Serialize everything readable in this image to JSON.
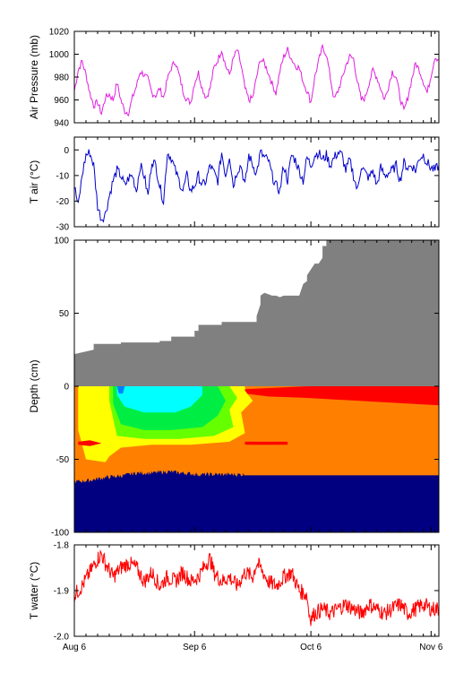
{
  "chart_data": [
    {
      "type": "line",
      "ylabel": "Air Pressure (mb)",
      "ylim": [
        940,
        1020
      ],
      "yticks": [
        "940",
        "960",
        "980",
        "1000",
        "1020"
      ],
      "xlim": [
        0,
        94
      ],
      "color": "#e020e0",
      "series": [
        {
          "x": [
            0,
            1,
            2,
            3,
            4,
            5,
            6,
            7,
            8,
            9,
            10,
            11,
            12,
            13,
            14,
            15,
            16,
            17,
            18,
            19,
            20,
            21,
            22,
            23,
            24,
            25,
            26,
            27,
            28,
            29,
            30,
            31,
            32,
            33,
            34,
            35,
            36,
            37,
            38,
            39,
            40,
            41,
            42,
            43,
            44,
            45,
            46,
            47,
            48,
            49,
            50,
            51,
            52,
            53,
            54,
            55,
            56,
            57,
            58,
            59,
            60,
            61,
            62,
            63,
            64,
            65,
            66,
            67,
            68,
            69,
            70,
            71,
            72,
            73,
            74,
            75,
            76,
            77,
            78,
            79,
            80,
            81,
            82,
            83,
            84,
            85,
            86,
            87,
            88,
            89,
            90,
            91,
            92,
            93,
            94
          ],
          "values": [
            968,
            986,
            994,
            982,
            966,
            955,
            958,
            948,
            962,
            965,
            960,
            975,
            960,
            950,
            949,
            962,
            972,
            985,
            982,
            978,
            966,
            964,
            970,
            962,
            978,
            988,
            994,
            982,
            968,
            960,
            958,
            975,
            984,
            970,
            962,
            970,
            988,
            995,
            1004,
            990,
            982,
            996,
            1004,
            990,
            970,
            960,
            962,
            980,
            996,
            992,
            984,
            974,
            966,
            985,
            998,
            1004,
            996,
            990,
            988,
            976,
            968,
            958,
            980,
            994,
            1006,
            1000,
            980,
            960,
            968,
            978,
            990,
            998,
            996,
            976,
            960,
            962,
            975,
            986,
            980,
            970,
            960,
            972,
            985,
            980,
            962,
            950,
            962,
            978,
            992,
            986,
            976,
            966,
            982,
            998,
            995
          ]
        }
      ]
    },
    {
      "type": "line",
      "ylabel": "T air (°C)",
      "ylim": [
        -30,
        5
      ],
      "yticks": [
        "-30",
        "-20",
        "-10",
        "0"
      ],
      "xlim": [
        0,
        94
      ],
      "color": "#0000cc",
      "series": [
        {
          "x": [
            0,
            1,
            2,
            3,
            4,
            5,
            6,
            7,
            8,
            9,
            10,
            11,
            12,
            13,
            14,
            15,
            16,
            17,
            18,
            19,
            20,
            21,
            22,
            23,
            24,
            25,
            26,
            27,
            28,
            29,
            30,
            31,
            32,
            33,
            34,
            35,
            36,
            37,
            38,
            39,
            40,
            41,
            42,
            43,
            44,
            45,
            46,
            47,
            48,
            49,
            50,
            51,
            52,
            53,
            54,
            55,
            56,
            57,
            58,
            59,
            60,
            61,
            62,
            63,
            64,
            65,
            66,
            67,
            68,
            69,
            70,
            71,
            72,
            73,
            74,
            75,
            76,
            77,
            78,
            79,
            80,
            81,
            82,
            83,
            84,
            85,
            86,
            87,
            88,
            89,
            90,
            91,
            92,
            93,
            94
          ],
          "values": [
            -14,
            -22,
            -10,
            -2,
            -1,
            -6,
            -22,
            -27,
            -25,
            -18,
            -12,
            -8,
            -10,
            -14,
            -11,
            -10,
            -16,
            -6,
            -10,
            -18,
            -4,
            -6,
            -14,
            -20,
            -1,
            -3,
            -8,
            -12,
            -16,
            -10,
            -16,
            -14,
            -10,
            -14,
            -12,
            -6,
            -9,
            -12,
            -1,
            -10,
            -2,
            -14,
            -8,
            -6,
            -14,
            -2,
            -6,
            -9,
            -1,
            -3,
            -4,
            -10,
            -14,
            -16,
            -6,
            -12,
            -2,
            -4,
            -8,
            -12,
            -3,
            -6,
            -2,
            -1,
            -4,
            -2,
            -6,
            -3,
            -1,
            -2,
            -8,
            -4,
            -10,
            -16,
            -6,
            -9,
            -11,
            -8,
            -14,
            -7,
            -10,
            -9,
            -8,
            -6,
            -12,
            -5,
            -7,
            -6,
            -8,
            -3,
            -2,
            -5,
            -7,
            -8,
            -6
          ]
        }
      ]
    },
    {
      "type": "heatmap",
      "ylabel": "Depth (cm)",
      "ylim": [
        -100,
        100
      ],
      "yticks": [
        "-100",
        "-50",
        "0",
        "50",
        "100"
      ],
      "xlim": [
        0,
        94
      ],
      "colors": {
        "snow": "#808080",
        "ice_bottom": "#000080",
        "orange": "#ff8000",
        "red": "#ff0000",
        "yellow": "#ffff00",
        "lime": "#00ff00",
        "cyan": "#00ffff",
        "blue": "#0080ff"
      },
      "snow_surface": {
        "x": [
          0,
          5,
          5,
          12,
          12,
          22,
          22,
          25,
          25,
          31,
          31,
          32,
          32,
          38,
          38,
          47,
          47,
          48,
          48,
          49,
          50,
          51,
          52,
          53,
          54,
          58,
          59,
          60,
          60,
          61,
          62,
          63,
          64,
          64,
          65,
          65,
          94
        ],
        "values": [
          22,
          25,
          29,
          29,
          30,
          30,
          31,
          31,
          34,
          34,
          38,
          38,
          42,
          42,
          44,
          44,
          48,
          56,
          62,
          64,
          63,
          62,
          62,
          61,
          62,
          62,
          70,
          72,
          76,
          80,
          84,
          84,
          88,
          96,
          96,
          100,
          100
        ]
      },
      "ice_top": {
        "x": [
          0,
          4,
          8,
          12,
          16,
          20,
          24,
          28,
          32,
          36,
          40,
          44,
          44,
          94
        ],
        "values": [
          -66,
          -65,
          -63,
          -62,
          -60,
          -60,
          -59,
          -60,
          -61,
          -61,
          -61,
          -61,
          -61,
          -61
        ]
      }
    },
    {
      "type": "line",
      "ylabel": "T water (°C)",
      "ylim": [
        -2.0,
        -1.8
      ],
      "yticks": [
        "-2.0",
        "-1.9",
        "-1.8"
      ],
      "xlabels": [
        "Aug 6",
        "Sep 6",
        "Oct 6",
        "Nov 6"
      ],
      "xticks": [
        0,
        31,
        61,
        92
      ],
      "xlim": [
        0,
        94
      ],
      "color": "#ff0000",
      "series": [
        {
          "x": [
            0,
            2,
            4,
            6,
            7,
            8,
            10,
            12,
            14,
            16,
            18,
            20,
            22,
            24,
            26,
            28,
            30,
            32,
            34,
            35,
            36,
            38,
            40,
            42,
            44,
            46,
            47,
            48,
            50,
            52,
            54,
            56,
            58,
            60,
            60.5,
            61,
            62,
            64,
            66,
            68,
            70,
            72,
            74,
            76,
            78,
            80,
            82,
            84,
            86,
            88,
            90,
            92,
            94
          ],
          "values": [
            -1.91,
            -1.89,
            -1.86,
            -1.83,
            -1.82,
            -1.84,
            -1.87,
            -1.85,
            -1.84,
            -1.85,
            -1.88,
            -1.86,
            -1.89,
            -1.87,
            -1.88,
            -1.86,
            -1.88,
            -1.87,
            -1.84,
            -1.83,
            -1.86,
            -1.88,
            -1.87,
            -1.89,
            -1.86,
            -1.87,
            -1.84,
            -1.85,
            -1.88,
            -1.89,
            -1.87,
            -1.86,
            -1.9,
            -1.91,
            -1.95,
            -1.96,
            -1.95,
            -1.94,
            -1.95,
            -1.94,
            -1.93,
            -1.94,
            -1.95,
            -1.93,
            -1.94,
            -1.95,
            -1.94,
            -1.93,
            -1.95,
            -1.94,
            -1.93,
            -1.94,
            -1.94
          ]
        }
      ]
    }
  ]
}
